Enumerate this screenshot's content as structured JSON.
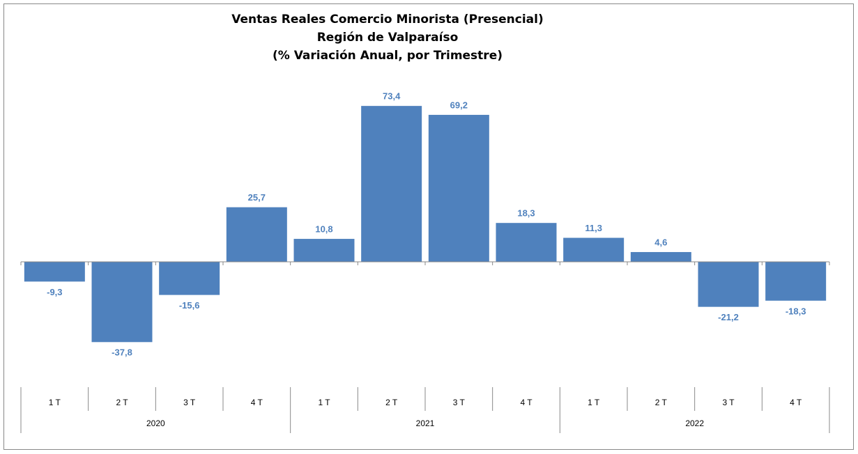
{
  "chart_data": {
    "type": "bar",
    "title": [
      "Ventas Reales Comercio Minorista (Presencial)",
      "Región de Valparaíso",
      "(% Variación Anual, por Trimestre)"
    ],
    "categories": [
      "1 T",
      "2 T",
      "3 T",
      "4 T",
      "1 T",
      "2 T",
      "3 T",
      "4 T",
      "1 T",
      "2 T",
      "3 T",
      "4 T"
    ],
    "years": [
      "2020",
      "2021",
      "2022"
    ],
    "values": [
      -9.3,
      -37.8,
      -15.6,
      25.7,
      10.8,
      73.4,
      69.2,
      18.3,
      11.3,
      4.6,
      -21.2,
      -18.3
    ],
    "value_labels": [
      "-9,3",
      "-37,8",
      "-15,6",
      "25,7",
      "10,8",
      "73,4",
      "69,2",
      "18,3",
      "11,3",
      "4,6",
      "-21,2",
      "-18,3"
    ],
    "color": "#4f81bd",
    "ylim": [
      -40,
      80
    ]
  }
}
